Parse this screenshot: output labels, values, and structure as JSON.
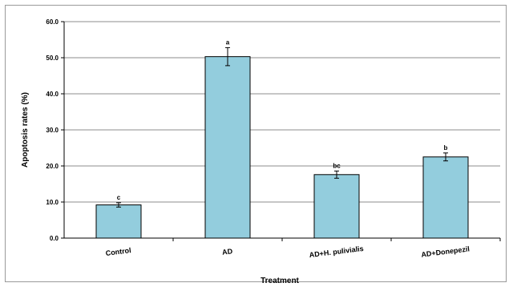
{
  "chart_data": {
    "type": "bar",
    "title": "",
    "xlabel": "Treatment",
    "ylabel": "Apoptosis rates (%)",
    "ylim": [
      0,
      60
    ],
    "yticks": [
      "0.0",
      "10.0",
      "20.0",
      "30.0",
      "40.0",
      "50.0",
      "60.0"
    ],
    "grid": true,
    "categories": [
      "Control",
      "AD",
      "AD+H. pulivialis",
      "AD+Donepezil"
    ],
    "values": [
      9.2,
      50.3,
      17.6,
      22.5
    ],
    "errors": [
      0.6,
      2.5,
      1.0,
      1.1
    ],
    "significance_labels": [
      "c",
      "a",
      "bc",
      "b"
    ],
    "bar_color": "#93cddd"
  }
}
